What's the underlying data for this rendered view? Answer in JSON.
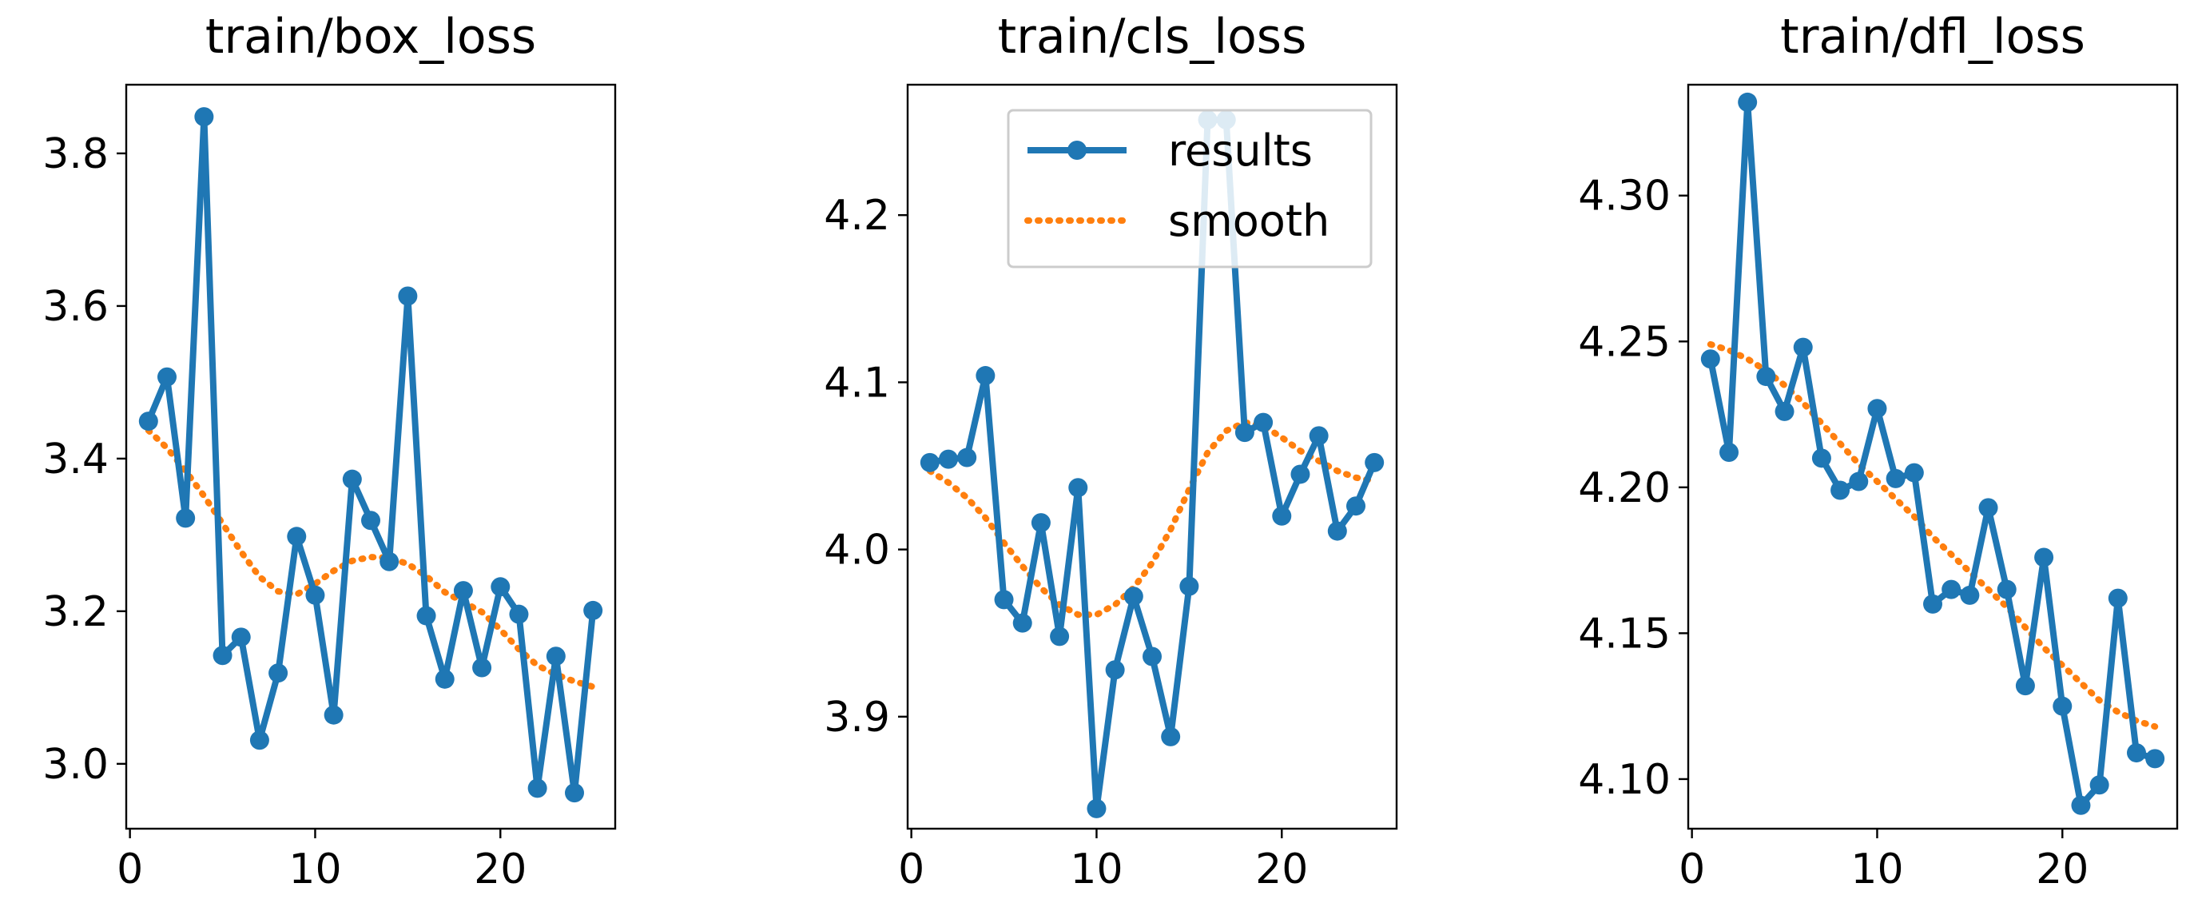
{
  "colors": {
    "results": "#1f77b4",
    "smooth": "#ff7f0e",
    "legend_border": "#cccccc"
  },
  "legend": {
    "results_label": "results",
    "smooth_label": "smooth",
    "placement": "upper-right of middle panel"
  },
  "chart_data": [
    {
      "type": "line",
      "title": "train/box_loss",
      "xlabel": "",
      "ylabel": "",
      "xlim": [
        -0.2,
        26.2
      ],
      "ylim": [
        2.915,
        3.89
      ],
      "xticks": [
        0,
        10,
        20
      ],
      "xtick_labels": [
        "0",
        "10",
        "20"
      ],
      "yticks": [
        3.0,
        3.2,
        3.4,
        3.6,
        3.8
      ],
      "ytick_labels": [
        "3.0",
        "3.2",
        "3.4",
        "3.6",
        "3.8"
      ],
      "grid": false,
      "x": [
        1,
        2,
        3,
        4,
        5,
        6,
        7,
        8,
        9,
        10,
        11,
        12,
        13,
        14,
        15,
        16,
        17,
        18,
        19,
        20,
        21,
        22,
        23,
        24,
        25
      ],
      "series": [
        {
          "name": "results",
          "style": "line-marker",
          "values": [
            3.449,
            3.507,
            3.322,
            3.848,
            3.142,
            3.166,
            3.031,
            3.119,
            3.298,
            3.221,
            3.064,
            3.373,
            3.319,
            3.265,
            3.613,
            3.194,
            3.111,
            3.227,
            3.126,
            3.232,
            3.196,
            2.968,
            3.141,
            2.962,
            3.201
          ]
        },
        {
          "name": "smooth",
          "style": "dotted",
          "values": [
            3.437,
            3.414,
            3.384,
            3.351,
            3.315,
            3.278,
            3.245,
            3.226,
            3.222,
            3.236,
            3.253,
            3.266,
            3.271,
            3.27,
            3.262,
            3.246,
            3.225,
            3.212,
            3.199,
            3.176,
            3.15,
            3.129,
            3.117,
            3.108,
            3.101
          ]
        }
      ]
    },
    {
      "type": "line",
      "title": "train/cls_loss",
      "xlabel": "",
      "ylabel": "",
      "xlim": [
        -0.2,
        26.2
      ],
      "ylim": [
        3.833,
        4.278
      ],
      "xticks": [
        0,
        10,
        20
      ],
      "xtick_labels": [
        "0",
        "10",
        "20"
      ],
      "yticks": [
        3.9,
        4.0,
        4.1,
        4.2
      ],
      "ytick_labels": [
        "3.9",
        "4.0",
        "4.1",
        "4.2"
      ],
      "grid": false,
      "x": [
        1,
        2,
        3,
        4,
        5,
        6,
        7,
        8,
        9,
        10,
        11,
        12,
        13,
        14,
        15,
        16,
        17,
        18,
        19,
        20,
        21,
        22,
        23,
        24,
        25
      ],
      "series": [
        {
          "name": "results",
          "style": "line-marker",
          "values": [
            4.052,
            4.054,
            4.055,
            4.104,
            3.97,
            3.956,
            4.016,
            3.948,
            4.037,
            3.845,
            3.928,
            3.972,
            3.936,
            3.888,
            3.978,
            4.257,
            4.257,
            4.07,
            4.076,
            4.02,
            4.045,
            4.068,
            4.011,
            4.026,
            4.052
          ]
        },
        {
          "name": "smooth",
          "style": "dotted",
          "values": [
            4.047,
            4.04,
            4.031,
            4.019,
            4.004,
            3.99,
            3.977,
            3.967,
            3.961,
            3.961,
            3.967,
            3.977,
            3.992,
            4.012,
            4.036,
            4.058,
            4.071,
            4.076,
            4.074,
            4.067,
            4.059,
            4.053,
            4.047,
            4.043,
            4.041
          ]
        }
      ]
    },
    {
      "type": "line",
      "title": "train/dfl_loss",
      "xlabel": "",
      "ylabel": "",
      "xlim": [
        -0.2,
        26.2
      ],
      "ylim": [
        4.083,
        4.338
      ],
      "xticks": [
        0,
        10,
        20
      ],
      "xtick_labels": [
        "0",
        "10",
        "20"
      ],
      "yticks": [
        4.1,
        4.15,
        4.2,
        4.25,
        4.3
      ],
      "ytick_labels": [
        "4.10",
        "4.15",
        "4.20",
        "4.25",
        "4.30"
      ],
      "grid": false,
      "x": [
        1,
        2,
        3,
        4,
        5,
        6,
        7,
        8,
        9,
        10,
        11,
        12,
        13,
        14,
        15,
        16,
        17,
        18,
        19,
        20,
        21,
        22,
        23,
        24,
        25
      ],
      "series": [
        {
          "name": "results",
          "style": "line-marker",
          "values": [
            4.244,
            4.212,
            4.332,
            4.238,
            4.226,
            4.248,
            4.21,
            4.199,
            4.202,
            4.227,
            4.203,
            4.205,
            4.16,
            4.165,
            4.163,
            4.193,
            4.165,
            4.132,
            4.176,
            4.125,
            4.091,
            4.098,
            4.162,
            4.109,
            4.107
          ]
        },
        {
          "name": "smooth",
          "style": "dotted",
          "values": [
            4.249,
            4.247,
            4.244,
            4.24,
            4.235,
            4.229,
            4.222,
            4.215,
            4.208,
            4.202,
            4.196,
            4.19,
            4.183,
            4.177,
            4.171,
            4.165,
            4.159,
            4.152,
            4.145,
            4.139,
            4.133,
            4.127,
            4.123,
            4.12,
            4.118
          ]
        }
      ]
    }
  ]
}
